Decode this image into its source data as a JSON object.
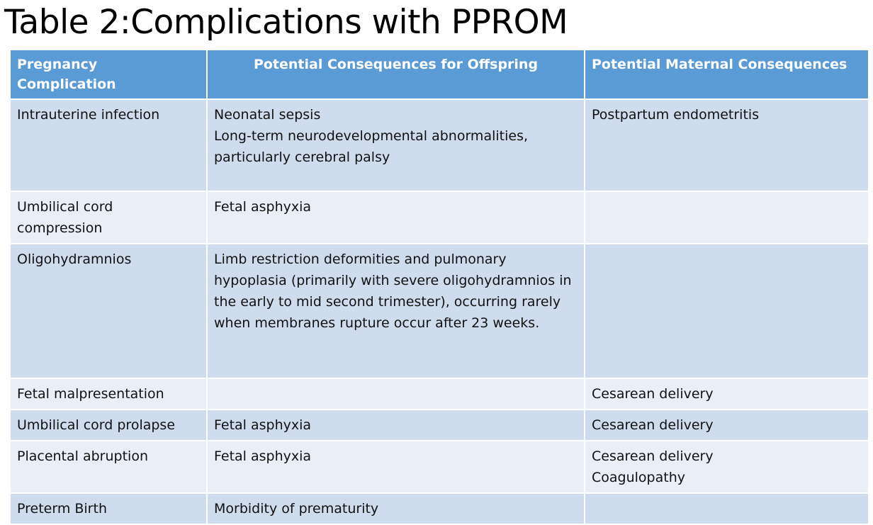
{
  "title": "Table 2:Complications with PPROM",
  "table": {
    "headers": [
      "Pregnancy Complication",
      "Potential Consequences for Offspring",
      "Potential Maternal Consequences"
    ],
    "rows": [
      {
        "complication": "Intrauterine infection",
        "offspring": [
          "Neonatal sepsis",
          "Long-term neurodevelopmental abnormalities, particularly cerebral palsy"
        ],
        "maternal": [
          "Postpartum endometritis"
        ]
      },
      {
        "complication": "Umbilical cord compression",
        "offspring": [
          "Fetal asphyxia"
        ],
        "maternal": []
      },
      {
        "complication": "Oligohydramnios",
        "offspring": [
          "Limb restriction deformities and pulmonary hypoplasia (primarily with severe oligohydramnios in the early to mid second trimester), occurring rarely when membranes rupture occur after 23 weeks."
        ],
        "maternal": []
      },
      {
        "complication": "Fetal malpresentation",
        "offspring": [],
        "maternal": [
          "Cesarean delivery"
        ]
      },
      {
        "complication": "Umbilical cord prolapse",
        "offspring": [
          "Fetal asphyxia"
        ],
        "maternal": [
          "Cesarean delivery"
        ]
      },
      {
        "complication": "Placental abruption",
        "offspring": [
          "Fetal asphyxia"
        ],
        "maternal": [
          "Cesarean delivery",
          "Coagulopathy"
        ]
      },
      {
        "complication": "Preterm Birth",
        "offspring": [
          "Morbidity of prematurity"
        ],
        "maternal": []
      }
    ]
  },
  "colors": {
    "header": "#5b9bd5",
    "row_odd": "#cfdcee",
    "row_even": "#e9eef7"
  }
}
